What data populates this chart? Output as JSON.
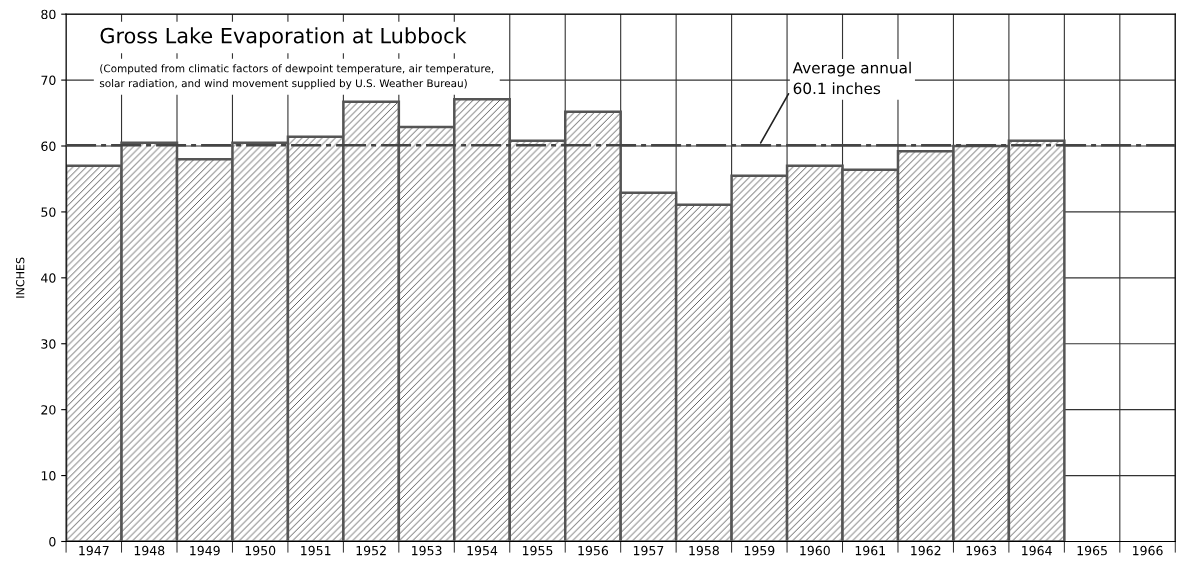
{
  "chart_data": {
    "type": "bar",
    "title": "Gross Lake Evaporation at Lubbock",
    "subtitle": "(Computed from climatic factors of dewpoint temperature, air temperature,\nsolar radiation, and wind movement supplied by U.S. Weather Bureau)",
    "ylabel": "INCHES",
    "categories": [
      "1947",
      "1948",
      "1949",
      "1950",
      "1951",
      "1952",
      "1953",
      "1954",
      "1955",
      "1956",
      "1957",
      "1958",
      "1959",
      "1960",
      "1961",
      "1962",
      "1963",
      "1964",
      "1965",
      "1966"
    ],
    "values": [
      57,
      60.5,
      58,
      60.5,
      61.4,
      66.7,
      62.9,
      67.1,
      60.8,
      65.2,
      52.9,
      51.1,
      55.5,
      57,
      56.4,
      59.2,
      60,
      60.8,
      null,
      null
    ],
    "color": "#555555",
    "ylim": [
      0,
      80
    ],
    "yticks": [
      0,
      10,
      20,
      30,
      40,
      50,
      60,
      70,
      80
    ],
    "grid": true,
    "ref_lines": [
      {
        "axis": "y",
        "value": 60.1,
        "line_style": "dashed",
        "color": "#444444"
      }
    ],
    "annotations": [
      {
        "text": "Average annual\n60.1 inches",
        "x": "1959",
        "y": 60.1
      }
    ]
  }
}
